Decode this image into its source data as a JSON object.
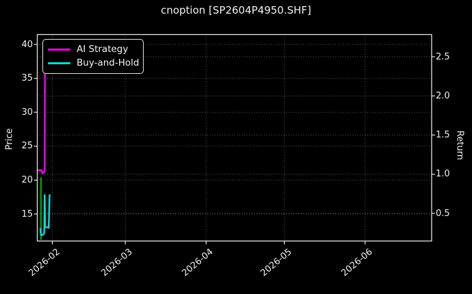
{
  "title": "cnoption [SP2604P4950.SHF]",
  "axes": {
    "left_label": "Price",
    "right_label": "Return"
  },
  "legend": {
    "position": "upper left",
    "entries": [
      {
        "label": "AI Strategy",
        "color": "#f000f0"
      },
      {
        "label": "Buy-and-Hold",
        "color": "#00dcdc"
      }
    ]
  },
  "chart_data": {
    "type": "line",
    "title": "cnoption [SP2604P4950.SHF]",
    "xlabel": "",
    "ylabel_left": "Price",
    "ylabel_right": "Return",
    "background": "#000000",
    "grid": {
      "on": true,
      "style": "dotted",
      "color": "rgba(255,255,255,0.38)"
    },
    "x_axis": {
      "kind": "date",
      "tick_labels": [
        "2026-02",
        "2026-03",
        "2026-04",
        "2026-05",
        "2026-06"
      ],
      "tick_t_days": [
        0,
        28,
        59,
        89,
        120
      ],
      "range_days_from_2026_02_01": [
        -5.7,
        25.8
      ]
    },
    "left_axis": {
      "label": "Price",
      "ticks": [
        40,
        35,
        30,
        25,
        20,
        15
      ],
      "range": [
        11.0,
        41.5
      ]
    },
    "right_axis": {
      "label": "Return",
      "ticks": [
        2.5,
        2.0,
        1.5,
        1.0,
        0.5
      ],
      "range": [
        0.15,
        2.8
      ]
    },
    "series": [
      {
        "name": "AI Strategy",
        "color": "#f000f0",
        "axis": "left",
        "points_t_days_price": [
          [
            -5.7,
            21.45
          ],
          [
            -4.1,
            21.45
          ],
          [
            -3.85,
            21.0
          ],
          [
            -3.3,
            21.1
          ],
          [
            -2.95,
            21.45
          ],
          [
            -2.8,
            38.5
          ]
        ],
        "note": "final vertical spike top is occluded by the legend box; visible up to ~36.2"
      },
      {
        "name": "Buy-and-Hold",
        "color": "#00dcdc",
        "axis": "left",
        "points_t_days_price": [
          [
            -4.6,
            12.8
          ],
          [
            -4.3,
            11.9
          ],
          [
            -3.5,
            11.95
          ],
          [
            -3.1,
            12.2
          ],
          [
            -2.95,
            17.8
          ],
          [
            -2.75,
            13.1
          ],
          [
            -1.4,
            12.95
          ],
          [
            -1.05,
            17.8
          ]
        ]
      },
      {
        "name": "entry-marker",
        "color": "#00a000",
        "axis": "left",
        "type": "vline",
        "t_days": -4.35,
        "price_span": [
          11.2,
          20.4
        ],
        "note": "unlabeled green vertical segment near series start"
      }
    ]
  }
}
